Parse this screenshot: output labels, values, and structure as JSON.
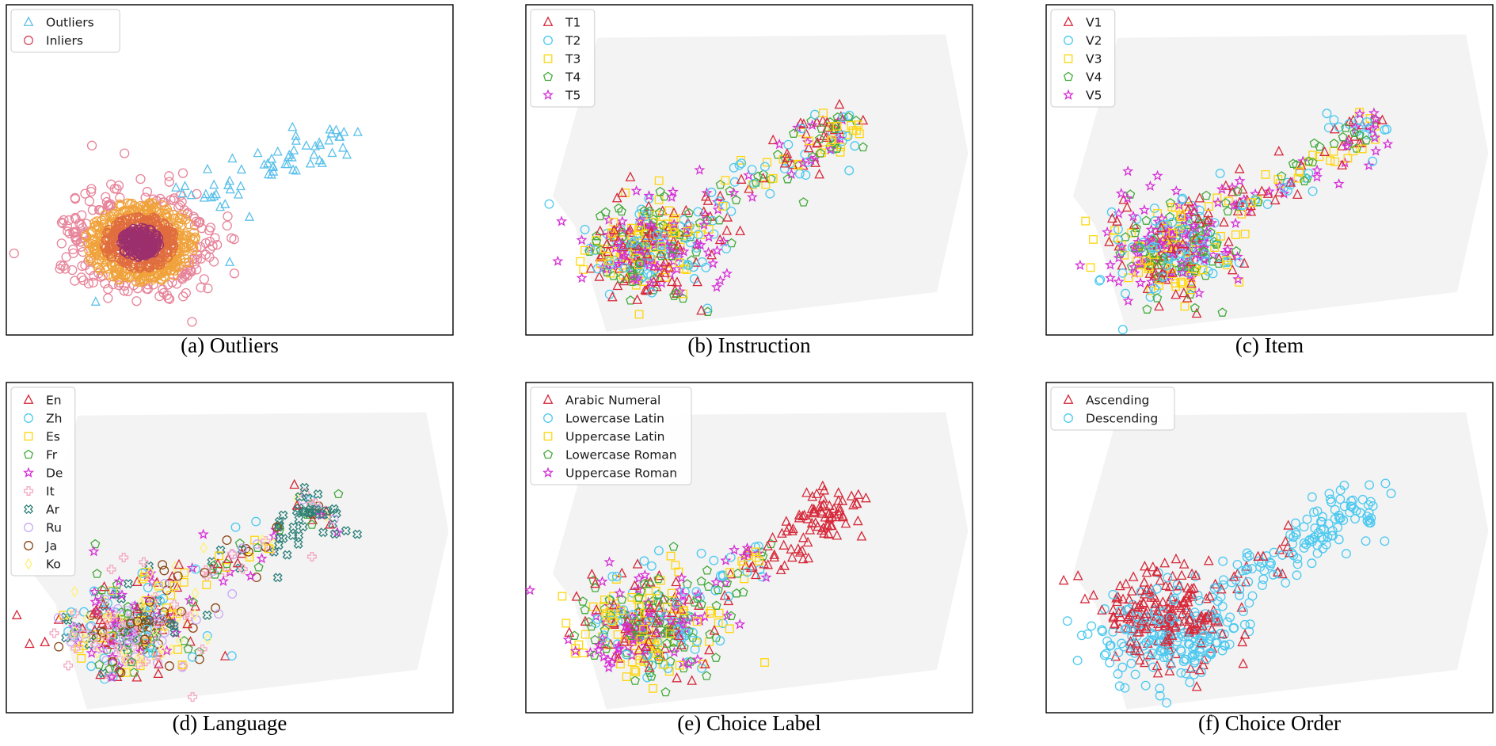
{
  "chart_data": [
    {
      "type": "scatter",
      "caption": "(a) Outliers",
      "legend_position": "top-left",
      "hull": false,
      "groups": [
        {
          "name": "Outliers",
          "marker": "triangle",
          "color": "#5bc0eb"
        },
        {
          "name": "Inliers",
          "marker": "circle",
          "color": "#d1495b",
          "density_colored": true
        }
      ]
    },
    {
      "type": "scatter",
      "caption": "(b) Instruction",
      "legend_position": "top-left",
      "hull": true,
      "groups": [
        {
          "name": "T1",
          "marker": "triangle",
          "color": "#d62839"
        },
        {
          "name": "T2",
          "marker": "circle",
          "color": "#4cc9f0"
        },
        {
          "name": "T3",
          "marker": "square",
          "color": "#ffd60a"
        },
        {
          "name": "T4",
          "marker": "pentagon",
          "color": "#43aa3b"
        },
        {
          "name": "T5",
          "marker": "star",
          "color": "#d62fd6"
        }
      ]
    },
    {
      "type": "scatter",
      "caption": "(c) Item",
      "legend_position": "top-left",
      "hull": true,
      "groups": [
        {
          "name": "V1",
          "marker": "triangle",
          "color": "#d62839"
        },
        {
          "name": "V2",
          "marker": "circle",
          "color": "#4cc9f0"
        },
        {
          "name": "V3",
          "marker": "square",
          "color": "#ffd60a"
        },
        {
          "name": "V4",
          "marker": "pentagon",
          "color": "#43aa3b"
        },
        {
          "name": "V5",
          "marker": "star",
          "color": "#d62fd6"
        }
      ]
    },
    {
      "type": "scatter",
      "caption": "(d) Language",
      "legend_position": "top-left",
      "hull": true,
      "groups": [
        {
          "name": "En",
          "marker": "triangle",
          "color": "#d62839"
        },
        {
          "name": "Zh",
          "marker": "circle",
          "color": "#4cc9f0"
        },
        {
          "name": "Es",
          "marker": "square",
          "color": "#ffd60a"
        },
        {
          "name": "Fr",
          "marker": "pentagon",
          "color": "#43aa3b"
        },
        {
          "name": "De",
          "marker": "star",
          "color": "#d62fd6"
        },
        {
          "name": "It",
          "marker": "plus",
          "color": "#f4a6c0"
        },
        {
          "name": "Ar",
          "marker": "xcross",
          "color": "#2a7f77"
        },
        {
          "name": "Ru",
          "marker": "circle",
          "color": "#c9a8f5"
        },
        {
          "name": "Ja",
          "marker": "circle",
          "color": "#8b4513"
        },
        {
          "name": "Ko",
          "marker": "diamond",
          "color": "#fff176"
        }
      ]
    },
    {
      "type": "scatter",
      "caption": "(e) Choice Label",
      "legend_position": "top-left",
      "hull": true,
      "groups": [
        {
          "name": "Arabic Numeral",
          "marker": "triangle",
          "color": "#d62839"
        },
        {
          "name": "Lowercase Latin",
          "marker": "circle",
          "color": "#4cc9f0"
        },
        {
          "name": "Uppercase Latin",
          "marker": "square",
          "color": "#ffd60a"
        },
        {
          "name": "Lowercase Roman",
          "marker": "pentagon",
          "color": "#43aa3b"
        },
        {
          "name": "Uppercase Roman",
          "marker": "star",
          "color": "#d62fd6"
        }
      ]
    },
    {
      "type": "scatter",
      "caption": "(f) Choice Order",
      "legend_position": "top-left",
      "hull": true,
      "groups": [
        {
          "name": "Ascending",
          "marker": "triangle",
          "color": "#d62839"
        },
        {
          "name": "Descending",
          "marker": "circle",
          "color": "#4cc9f0"
        }
      ]
    }
  ]
}
